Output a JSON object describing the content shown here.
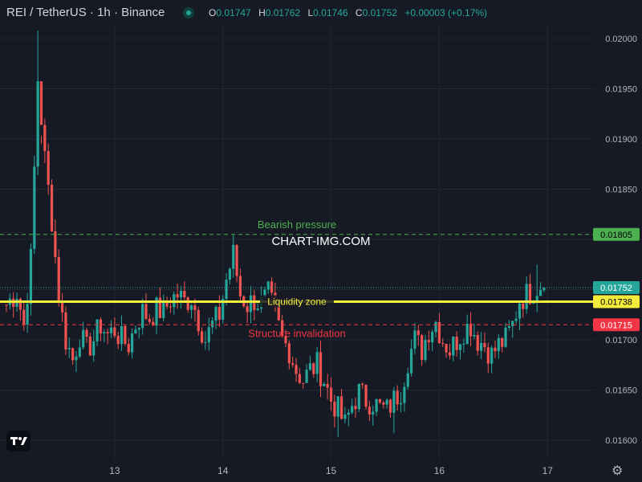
{
  "header": {
    "symbol_line": "REI / TetherUS · 1h · Binance",
    "o_label": "O",
    "o_value": "0.01747",
    "h_label": "H",
    "h_value": "0.01762",
    "l_label": "L",
    "l_value": "0.01746",
    "c_label": "C",
    "c_value": "0.01752",
    "change": "+0.00003 (+0.17%)"
  },
  "watermark": "CHART-IMG.COM",
  "colors": {
    "background": "#161a25",
    "grid": "#232733",
    "up": "#26a69a",
    "down": "#ef5350",
    "bearish_line": "#4caf50",
    "liquidity_line": "#f5eb3a",
    "invalidation_line": "#f23645",
    "axis_text": "#b2b5be"
  },
  "icons": [
    "tradingview-logo-icon",
    "status-dot-icon",
    "settings-gear-icon"
  ],
  "chart_data": {
    "type": "candlestick",
    "title": "REI / TetherUS · 1h · Binance",
    "y_ticks": [
      "0.02000",
      "0.01950",
      "0.01900",
      "0.01850",
      "0.01700",
      "0.01650",
      "0.01600"
    ],
    "ylim": [
      0.0159,
      0.02045
    ],
    "x_ticks": [
      "13",
      "14",
      "15",
      "16",
      "17"
    ],
    "xlim": [
      0,
      175
    ],
    "x_tick_positions": [
      31,
      62,
      93,
      124,
      155
    ],
    "levels": [
      {
        "name": "Bearish pressure",
        "value": 0.01805,
        "label": "0.01805",
        "style": "dashed",
        "color": "#4caf50"
      },
      {
        "name": "Liquidity zone",
        "value": 0.01738,
        "label": "0.01738",
        "style": "solid",
        "color": "#f5eb3a"
      },
      {
        "name": "Structure invalidation",
        "value": 0.01715,
        "label": "0.01715",
        "style": "dashed",
        "color": "#f23645"
      }
    ],
    "last_price": {
      "value": 0.01752,
      "label": "0.01752"
    },
    "anchors": [
      [
        0,
        0.01735
      ],
      [
        3,
        0.01748
      ],
      [
        5,
        0.01715
      ],
      [
        7,
        0.0178
      ],
      [
        9,
        0.0196
      ],
      [
        11,
        0.0188
      ],
      [
        13,
        0.0182
      ],
      [
        15,
        0.01745
      ],
      [
        17,
        0.017
      ],
      [
        19,
        0.0168
      ],
      [
        21,
        0.01705
      ],
      [
        23,
        0.0169
      ],
      [
        25,
        0.017
      ],
      [
        27,
        0.01715
      ],
      [
        29,
        0.01705
      ],
      [
        31,
        0.0171
      ],
      [
        33,
        0.017
      ],
      [
        35,
        0.01695
      ],
      [
        37,
        0.01715
      ],
      [
        39,
        0.01728
      ],
      [
        41,
        0.01722
      ],
      [
        43,
        0.0173
      ],
      [
        45,
        0.01728
      ],
      [
        47,
        0.0174
      ],
      [
        49,
        0.01745
      ],
      [
        51,
        0.01738
      ],
      [
        53,
        0.01742
      ],
      [
        55,
        0.0172
      ],
      [
        57,
        0.017
      ],
      [
        59,
        0.01715
      ],
      [
        61,
        0.01725
      ],
      [
        63,
        0.0176
      ],
      [
        65,
        0.01785
      ],
      [
        67,
        0.01745
      ],
      [
        69,
        0.01735
      ],
      [
        71,
        0.0174
      ],
      [
        73,
        0.01735
      ],
      [
        75,
        0.01745
      ],
      [
        77,
        0.01725
      ],
      [
        79,
        0.017
      ],
      [
        81,
        0.0169
      ],
      [
        83,
        0.0167
      ],
      [
        85,
        0.0166
      ],
      [
        87,
        0.0167
      ],
      [
        89,
        0.01675
      ],
      [
        91,
        0.0166
      ],
      [
        93,
        0.0164
      ],
      [
        95,
        0.0163
      ],
      [
        97,
        0.01615
      ],
      [
        99,
        0.01635
      ],
      [
        101,
        0.01648
      ],
      [
        103,
        0.0164
      ],
      [
        105,
        0.01638
      ],
      [
        107,
        0.01632
      ],
      [
        109,
        0.0163
      ],
      [
        111,
        0.0164
      ],
      [
        113,
        0.0165
      ],
      [
        115,
        0.0168
      ],
      [
        117,
        0.017
      ],
      [
        119,
        0.0169
      ],
      [
        121,
        0.0171
      ],
      [
        123,
        0.01718
      ],
      [
        125,
        0.017
      ],
      [
        127,
        0.0169
      ],
      [
        129,
        0.017
      ],
      [
        131,
        0.0171
      ],
      [
        133,
        0.01715
      ],
      [
        135,
        0.017
      ],
      [
        137,
        0.01695
      ],
      [
        139,
        0.01685
      ],
      [
        141,
        0.01695
      ],
      [
        143,
        0.017
      ],
      [
        145,
        0.01715
      ],
      [
        147,
        0.0174
      ],
      [
        149,
        0.01745
      ],
      [
        151,
        0.0175
      ],
      [
        153,
        0.01755
      ],
      [
        154,
        0.01752
      ]
    ]
  }
}
